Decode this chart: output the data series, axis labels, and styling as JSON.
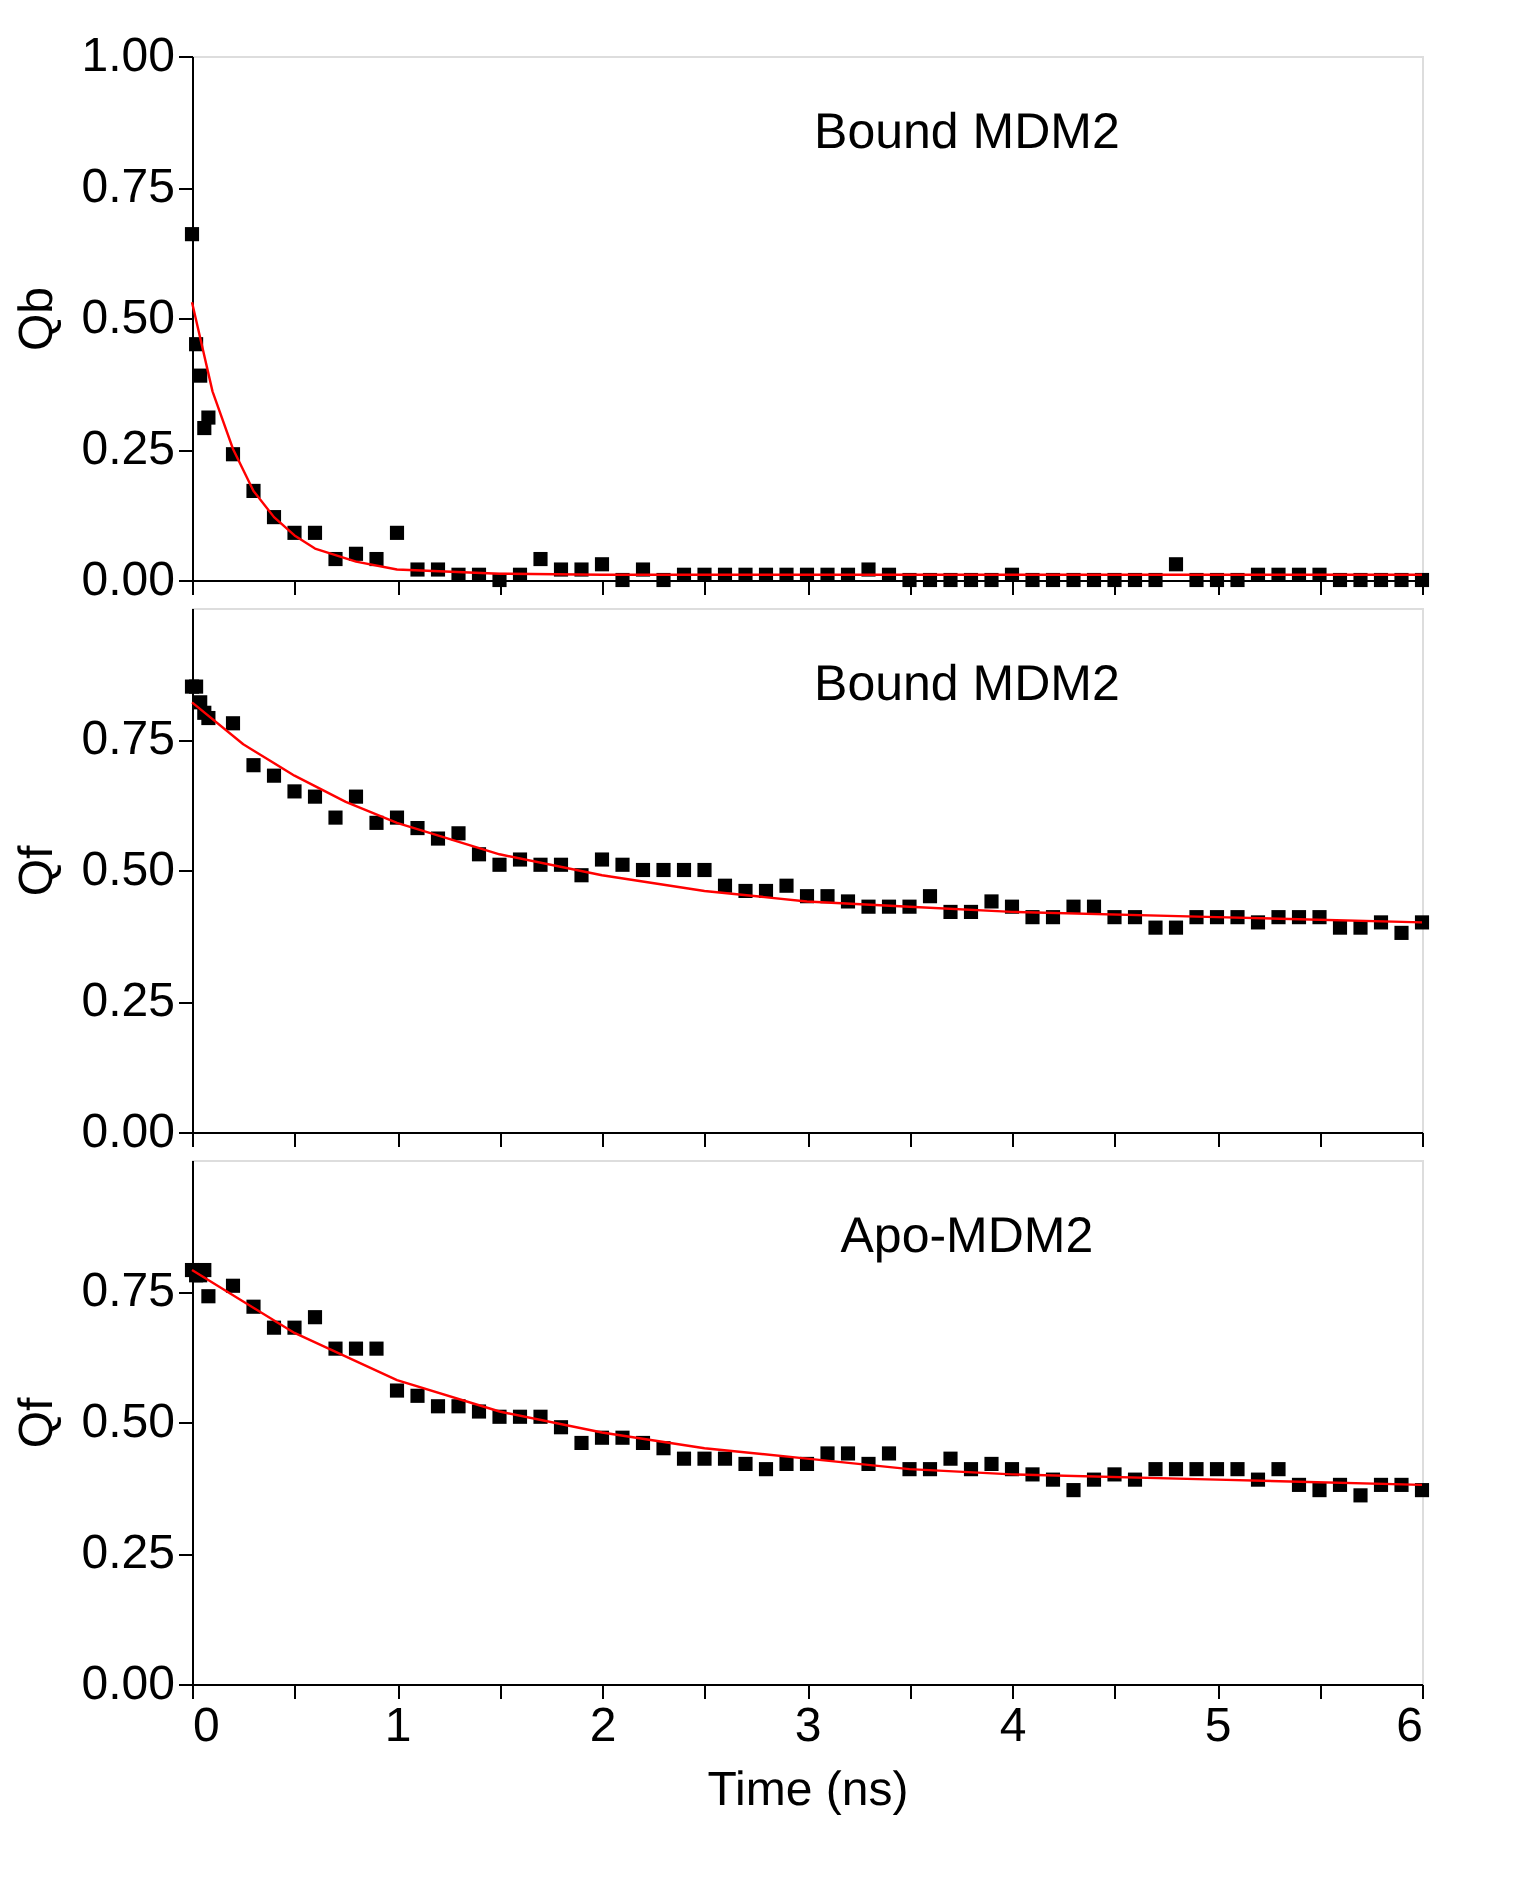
{
  "chart_data": [
    {
      "type": "scatter",
      "ylabel": "Qb",
      "annotations": [
        "Bound MDM2"
      ],
      "tick_labels": "y",
      "xlim": [
        0,
        6
      ],
      "ylim": [
        0,
        1
      ],
      "xticks": [
        {
          "value": 0,
          "label": null
        },
        {
          "value": 0.5,
          "label": null
        },
        {
          "value": 1,
          "label": null
        },
        {
          "value": 1.5,
          "label": null
        },
        {
          "value": 2,
          "label": null
        },
        {
          "value": 2.5,
          "label": null
        },
        {
          "value": 3,
          "label": null
        },
        {
          "value": 3.5,
          "label": null
        },
        {
          "value": 4,
          "label": null
        },
        {
          "value": 4.5,
          "label": null
        },
        {
          "value": 5,
          "label": null
        },
        {
          "value": 5.5,
          "label": null
        },
        {
          "value": 6,
          "label": null
        }
      ],
      "yticks": [
        {
          "value": 0,
          "label": "0.00"
        },
        {
          "value": 0.25,
          "label": "0.25"
        },
        {
          "value": 0.5,
          "label": "0.50"
        },
        {
          "value": 0.75,
          "label": "0.75"
        },
        {
          "value": 1,
          "label": "1.00"
        }
      ],
      "series": [
        {
          "type": "scatter",
          "marker": "square",
          "color": "#000000",
          "x": [
            0,
            0.02,
            0.04,
            0.06,
            0.08,
            0.2,
            0.3,
            0.4,
            0.5,
            0.6,
            0.7,
            0.8,
            0.9,
            1.0,
            1.1,
            1.2,
            1.3,
            1.4,
            1.5,
            1.6,
            1.7,
            1.8,
            1.9,
            2.0,
            2.1,
            2.2,
            2.3,
            2.4,
            2.5,
            2.6,
            2.7,
            2.8,
            2.9,
            3.0,
            3.1,
            3.2,
            3.3,
            3.4,
            3.5,
            3.6,
            3.7,
            3.8,
            3.9,
            4.0,
            4.1,
            4.2,
            4.3,
            4.4,
            4.5,
            4.6,
            4.7,
            4.8,
            4.9,
            5.0,
            5.1,
            5.2,
            5.3,
            5.4,
            5.5,
            5.6,
            5.7,
            5.8,
            5.9,
            6.0
          ],
          "values": [
            0.66,
            0.45,
            0.39,
            0.29,
            0.31,
            0.24,
            0.17,
            0.12,
            0.09,
            0.09,
            0.04,
            0.05,
            0.04,
            0.09,
            0.02,
            0.02,
            0.01,
            0.01,
            0.0,
            0.01,
            0.04,
            0.02,
            0.02,
            0.03,
            0.0,
            0.02,
            0.0,
            0.01,
            0.01,
            0.01,
            0.01,
            0.01,
            0.01,
            0.01,
            0.01,
            0.01,
            0.02,
            0.01,
            0.0,
            0.0,
            0.0,
            0.0,
            0.0,
            0.01,
            0.0,
            0.0,
            0.0,
            0.0,
            0.0,
            0.0,
            0.0,
            0.03,
            0.0,
            0.0,
            0.0,
            0.01,
            0.01,
            0.01,
            0.01,
            0.0,
            0.0,
            0.0,
            0.0,
            0.0
          ]
        },
        {
          "type": "line",
          "color": "#ff0000",
          "x": [
            0,
            0.1,
            0.2,
            0.3,
            0.4,
            0.5,
            0.6,
            0.8,
            1.0,
            1.5,
            2.0,
            6.0
          ],
          "values": [
            0.53,
            0.36,
            0.25,
            0.17,
            0.12,
            0.085,
            0.06,
            0.035,
            0.02,
            0.012,
            0.01,
            0.01
          ]
        }
      ]
    },
    {
      "type": "scatter",
      "ylabel": "Qf",
      "annotations": [
        "Bound MDM2"
      ],
      "tick_labels": "y",
      "xlim": [
        0,
        6
      ],
      "ylim": [
        0,
        1
      ],
      "xticks": [
        {
          "value": 0,
          "label": null
        },
        {
          "value": 0.5,
          "label": null
        },
        {
          "value": 1,
          "label": null
        },
        {
          "value": 1.5,
          "label": null
        },
        {
          "value": 2,
          "label": null
        },
        {
          "value": 2.5,
          "label": null
        },
        {
          "value": 3,
          "label": null
        },
        {
          "value": 3.5,
          "label": null
        },
        {
          "value": 4,
          "label": null
        },
        {
          "value": 4.5,
          "label": null
        },
        {
          "value": 5,
          "label": null
        },
        {
          "value": 5.5,
          "label": null
        },
        {
          "value": 6,
          "label": null
        }
      ],
      "yticks": [
        {
          "value": 0,
          "label": "0.00"
        },
        {
          "value": 0.25,
          "label": "0.25"
        },
        {
          "value": 0.5,
          "label": "0.50"
        },
        {
          "value": 0.75,
          "label": "0.75"
        }
      ],
      "series": [
        {
          "type": "scatter",
          "marker": "square",
          "color": "#000000",
          "x": [
            0,
            0.02,
            0.04,
            0.06,
            0.08,
            0.2,
            0.3,
            0.4,
            0.5,
            0.6,
            0.7,
            0.8,
            0.9,
            1.0,
            1.1,
            1.2,
            1.3,
            1.4,
            1.5,
            1.6,
            1.7,
            1.8,
            1.9,
            2.0,
            2.1,
            2.2,
            2.3,
            2.4,
            2.5,
            2.6,
            2.7,
            2.8,
            2.9,
            3.0,
            3.1,
            3.2,
            3.3,
            3.4,
            3.5,
            3.6,
            3.7,
            3.8,
            3.9,
            4.0,
            4.1,
            4.2,
            4.3,
            4.4,
            4.5,
            4.6,
            4.7,
            4.8,
            4.9,
            5.0,
            5.1,
            5.2,
            5.3,
            5.4,
            5.5,
            5.6,
            5.7,
            5.8,
            5.9,
            6.0
          ],
          "values": [
            0.85,
            0.85,
            0.82,
            0.8,
            0.79,
            0.78,
            0.7,
            0.68,
            0.65,
            0.64,
            0.6,
            0.64,
            0.59,
            0.6,
            0.58,
            0.56,
            0.57,
            0.53,
            0.51,
            0.52,
            0.51,
            0.51,
            0.49,
            0.52,
            0.51,
            0.5,
            0.5,
            0.5,
            0.5,
            0.47,
            0.46,
            0.46,
            0.47,
            0.45,
            0.45,
            0.44,
            0.43,
            0.43,
            0.43,
            0.45,
            0.42,
            0.42,
            0.44,
            0.43,
            0.41,
            0.41,
            0.43,
            0.43,
            0.41,
            0.41,
            0.39,
            0.39,
            0.41,
            0.41,
            0.41,
            0.4,
            0.41,
            0.41,
            0.41,
            0.39,
            0.39,
            0.4,
            0.38,
            0.4
          ]
        },
        {
          "type": "line",
          "color": "#ff0000",
          "x": [
            0,
            0.25,
            0.5,
            0.75,
            1.0,
            1.5,
            2.0,
            2.5,
            3.0,
            3.5,
            4.0,
            5.0,
            6.0
          ],
          "values": [
            0.82,
            0.74,
            0.68,
            0.63,
            0.59,
            0.53,
            0.49,
            0.46,
            0.44,
            0.43,
            0.42,
            0.41,
            0.4
          ]
        }
      ]
    },
    {
      "type": "scatter",
      "ylabel": "Qf",
      "xlabel": "Time (ns)",
      "annotations": [
        "Apo-MDM2"
      ],
      "xlim": [
        0,
        6
      ],
      "ylim": [
        0,
        1
      ],
      "xticks": [
        {
          "value": 0,
          "label": "0"
        },
        {
          "value": 0.5,
          "label": null
        },
        {
          "value": 1,
          "label": "1"
        },
        {
          "value": 1.5,
          "label": null
        },
        {
          "value": 2,
          "label": "2"
        },
        {
          "value": 2.5,
          "label": null
        },
        {
          "value": 3,
          "label": "3"
        },
        {
          "value": 3.5,
          "label": null
        },
        {
          "value": 4,
          "label": "4"
        },
        {
          "value": 4.5,
          "label": null
        },
        {
          "value": 5,
          "label": "5"
        },
        {
          "value": 5.5,
          "label": null
        },
        {
          "value": 6,
          "label": "6"
        }
      ],
      "yticks": [
        {
          "value": 0,
          "label": "0.00"
        },
        {
          "value": 0.25,
          "label": "0.25"
        },
        {
          "value": 0.5,
          "label": "0.50"
        },
        {
          "value": 0.75,
          "label": "0.75"
        }
      ],
      "series": [
        {
          "type": "scatter",
          "marker": "square",
          "color": "#000000",
          "x": [
            0,
            0.02,
            0.04,
            0.06,
            0.08,
            0.2,
            0.3,
            0.4,
            0.5,
            0.6,
            0.7,
            0.8,
            0.9,
            1.0,
            1.1,
            1.2,
            1.3,
            1.4,
            1.5,
            1.6,
            1.7,
            1.8,
            1.9,
            2.0,
            2.1,
            2.2,
            2.3,
            2.4,
            2.5,
            2.6,
            2.7,
            2.8,
            2.9,
            3.0,
            3.1,
            3.2,
            3.3,
            3.4,
            3.5,
            3.6,
            3.7,
            3.8,
            3.9,
            4.0,
            4.1,
            4.2,
            4.3,
            4.4,
            4.5,
            4.6,
            4.7,
            4.8,
            4.9,
            5.0,
            5.1,
            5.2,
            5.3,
            5.4,
            5.5,
            5.6,
            5.7,
            5.8,
            5.9,
            6.0
          ],
          "values": [
            0.79,
            0.78,
            0.78,
            0.79,
            0.74,
            0.76,
            0.72,
            0.68,
            0.68,
            0.7,
            0.64,
            0.64,
            0.64,
            0.56,
            0.55,
            0.53,
            0.53,
            0.52,
            0.51,
            0.51,
            0.51,
            0.49,
            0.46,
            0.47,
            0.47,
            0.46,
            0.45,
            0.43,
            0.43,
            0.43,
            0.42,
            0.41,
            0.42,
            0.42,
            0.44,
            0.44,
            0.42,
            0.44,
            0.41,
            0.41,
            0.43,
            0.41,
            0.42,
            0.41,
            0.4,
            0.39,
            0.37,
            0.39,
            0.4,
            0.39,
            0.41,
            0.41,
            0.41,
            0.41,
            0.41,
            0.39,
            0.41,
            0.38,
            0.37,
            0.38,
            0.36,
            0.38,
            0.38,
            0.37
          ]
        },
        {
          "type": "line",
          "color": "#ff0000",
          "x": [
            0,
            0.5,
            1.0,
            1.5,
            2.0,
            2.5,
            3.0,
            3.5,
            4.0,
            5.0,
            6.0
          ],
          "values": [
            0.79,
            0.67,
            0.58,
            0.52,
            0.48,
            0.45,
            0.43,
            0.41,
            0.4,
            0.39,
            0.38
          ]
        }
      ]
    }
  ]
}
